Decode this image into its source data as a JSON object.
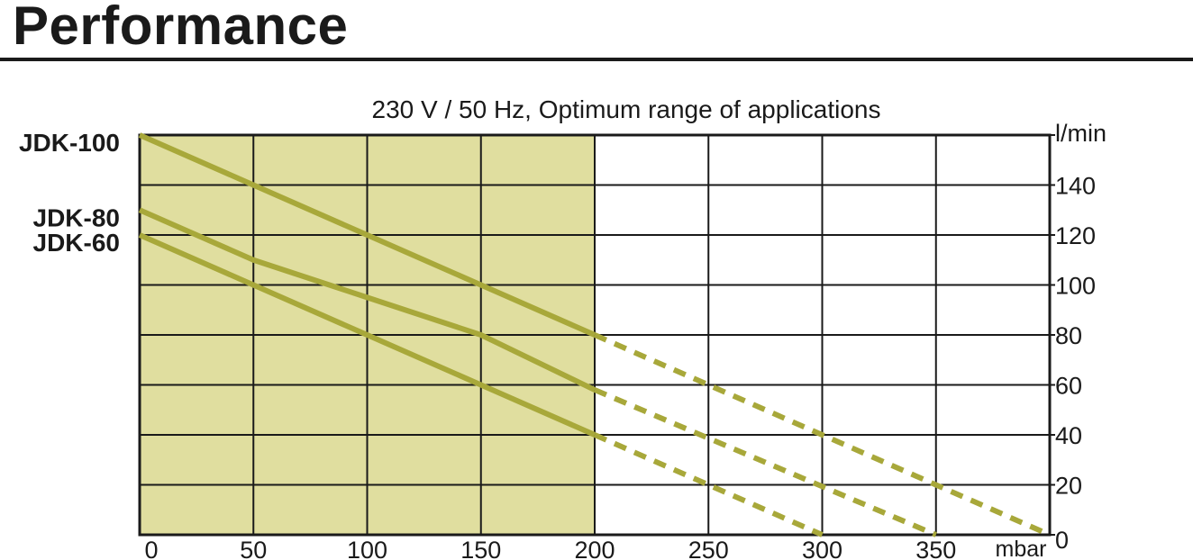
{
  "page": {
    "heading": "Performance"
  },
  "colors": {
    "shade": "#e0de9f",
    "line": "#a8a83a",
    "grid": "#1a1a1a"
  },
  "chart_data": {
    "type": "line",
    "title": "230 V / 50 Hz, Optimum range of applications",
    "xlabel": "mbar",
    "ylabel": "l/min",
    "xlim": [
      0,
      400
    ],
    "ylim": [
      0,
      160
    ],
    "x_ticks": [
      "0",
      "50",
      "100",
      "150",
      "200",
      "250",
      "300",
      "350"
    ],
    "y_ticks": [
      "0",
      "20",
      "40",
      "60",
      "80",
      "100",
      "120",
      "140"
    ],
    "x_tick_values": [
      0,
      50,
      100,
      150,
      200,
      250,
      300,
      350
    ],
    "y_tick_values": [
      0,
      20,
      40,
      60,
      80,
      100,
      120,
      140
    ],
    "grid": true,
    "shaded_region": {
      "x": [
        0,
        200
      ],
      "label": "Optimum range of applications"
    },
    "legend_position": "left",
    "series": [
      {
        "name": "JDK-100",
        "solid": {
          "x": [
            0,
            50,
            100,
            150,
            200
          ],
          "y": [
            160,
            140,
            120,
            100,
            80
          ]
        },
        "dashed": {
          "x": [
            200,
            400
          ],
          "y": [
            80,
            0
          ]
        }
      },
      {
        "name": "JDK-80",
        "solid": {
          "x": [
            0,
            50,
            100,
            150,
            200
          ],
          "y": [
            130,
            110,
            95,
            80,
            58
          ]
        },
        "dashed": {
          "x": [
            200,
            350
          ],
          "y": [
            58,
            0
          ]
        }
      },
      {
        "name": "JDK-60",
        "solid": {
          "x": [
            0,
            50,
            100,
            150,
            200
          ],
          "y": [
            120,
            100,
            80,
            60,
            40
          ]
        },
        "dashed": {
          "x": [
            200,
            300
          ],
          "y": [
            40,
            0
          ]
        }
      }
    ]
  }
}
